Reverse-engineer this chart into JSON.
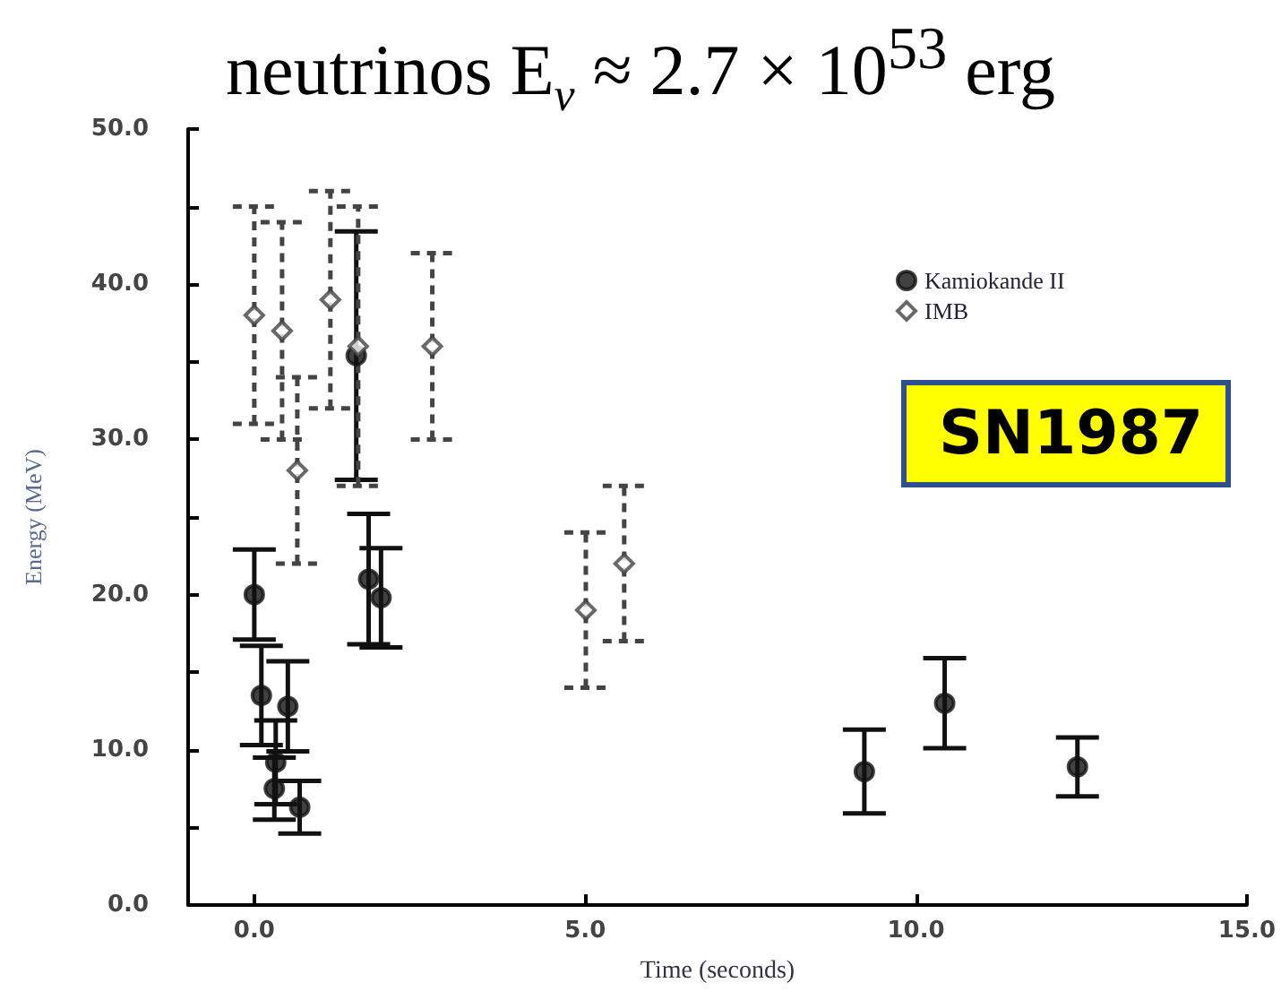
{
  "chart_data": {
    "type": "scatter",
    "title": "neutrinos E$_{ν}$ ≈ 2.7 × 10$^{53}$ erg",
    "xlabel": "Time (seconds)",
    "ylabel": "Energy (MeV)",
    "annotations": [
      "SN1987"
    ],
    "series": [
      {
        "name": "Kamiokande II",
        "color": "#111111",
        "marker": "circle",
        "line_style": "solid",
        "x": [
          0,
          0.107,
          0.303,
          0.324,
          0.507,
          0.686,
          1.541,
          1.728,
          1.915,
          9.219,
          10.433,
          12.439
        ],
        "values": [
          20.0,
          13.5,
          7.5,
          9.2,
          12.8,
          6.3,
          35.4,
          21.0,
          19.8,
          8.6,
          13.0,
          8.9
        ],
        "errors": [
          2.9,
          3.2,
          2.0,
          2.7,
          2.9,
          1.7,
          8.0,
          4.2,
          3.2,
          2.7,
          2.9,
          1.9
        ]
      },
      {
        "name": "IMB",
        "color": "#444444",
        "marker": "diamond",
        "line_style": "dashed",
        "x": [
          0,
          0.42,
          0.65,
          1.15,
          1.57,
          2.69,
          5.01,
          5.59
        ],
        "values": [
          38,
          37,
          28,
          39,
          36,
          36,
          19,
          22
        ],
        "errors": [
          7,
          7,
          6,
          7,
          9,
          6,
          5,
          5
        ]
      }
    ],
    "xlim": [
      -1,
      15
    ],
    "xticks": [
      {
        "value": 0,
        "label": "0.0"
      },
      {
        "value": 5,
        "label": "5.0"
      },
      {
        "value": 10,
        "label": "10.0"
      },
      {
        "value": 15,
        "label": "15.0"
      }
    ],
    "ylim": [
      0,
      50
    ],
    "yticks": [
      {
        "value": 0,
        "label": "0.0"
      },
      {
        "value": 5,
        "label": null
      },
      {
        "value": 10,
        "label": "10.0"
      },
      {
        "value": 15,
        "label": null
      },
      {
        "value": 20,
        "label": "20.0"
      },
      {
        "value": 25,
        "label": null
      },
      {
        "value": 30,
        "label": "30.0"
      },
      {
        "value": 35,
        "label": null
      },
      {
        "value": 40,
        "label": "40.0"
      },
      {
        "value": 45,
        "label": null
      },
      {
        "value": 50,
        "label": "50.0"
      }
    ],
    "grid": false,
    "legend": "top right"
  }
}
